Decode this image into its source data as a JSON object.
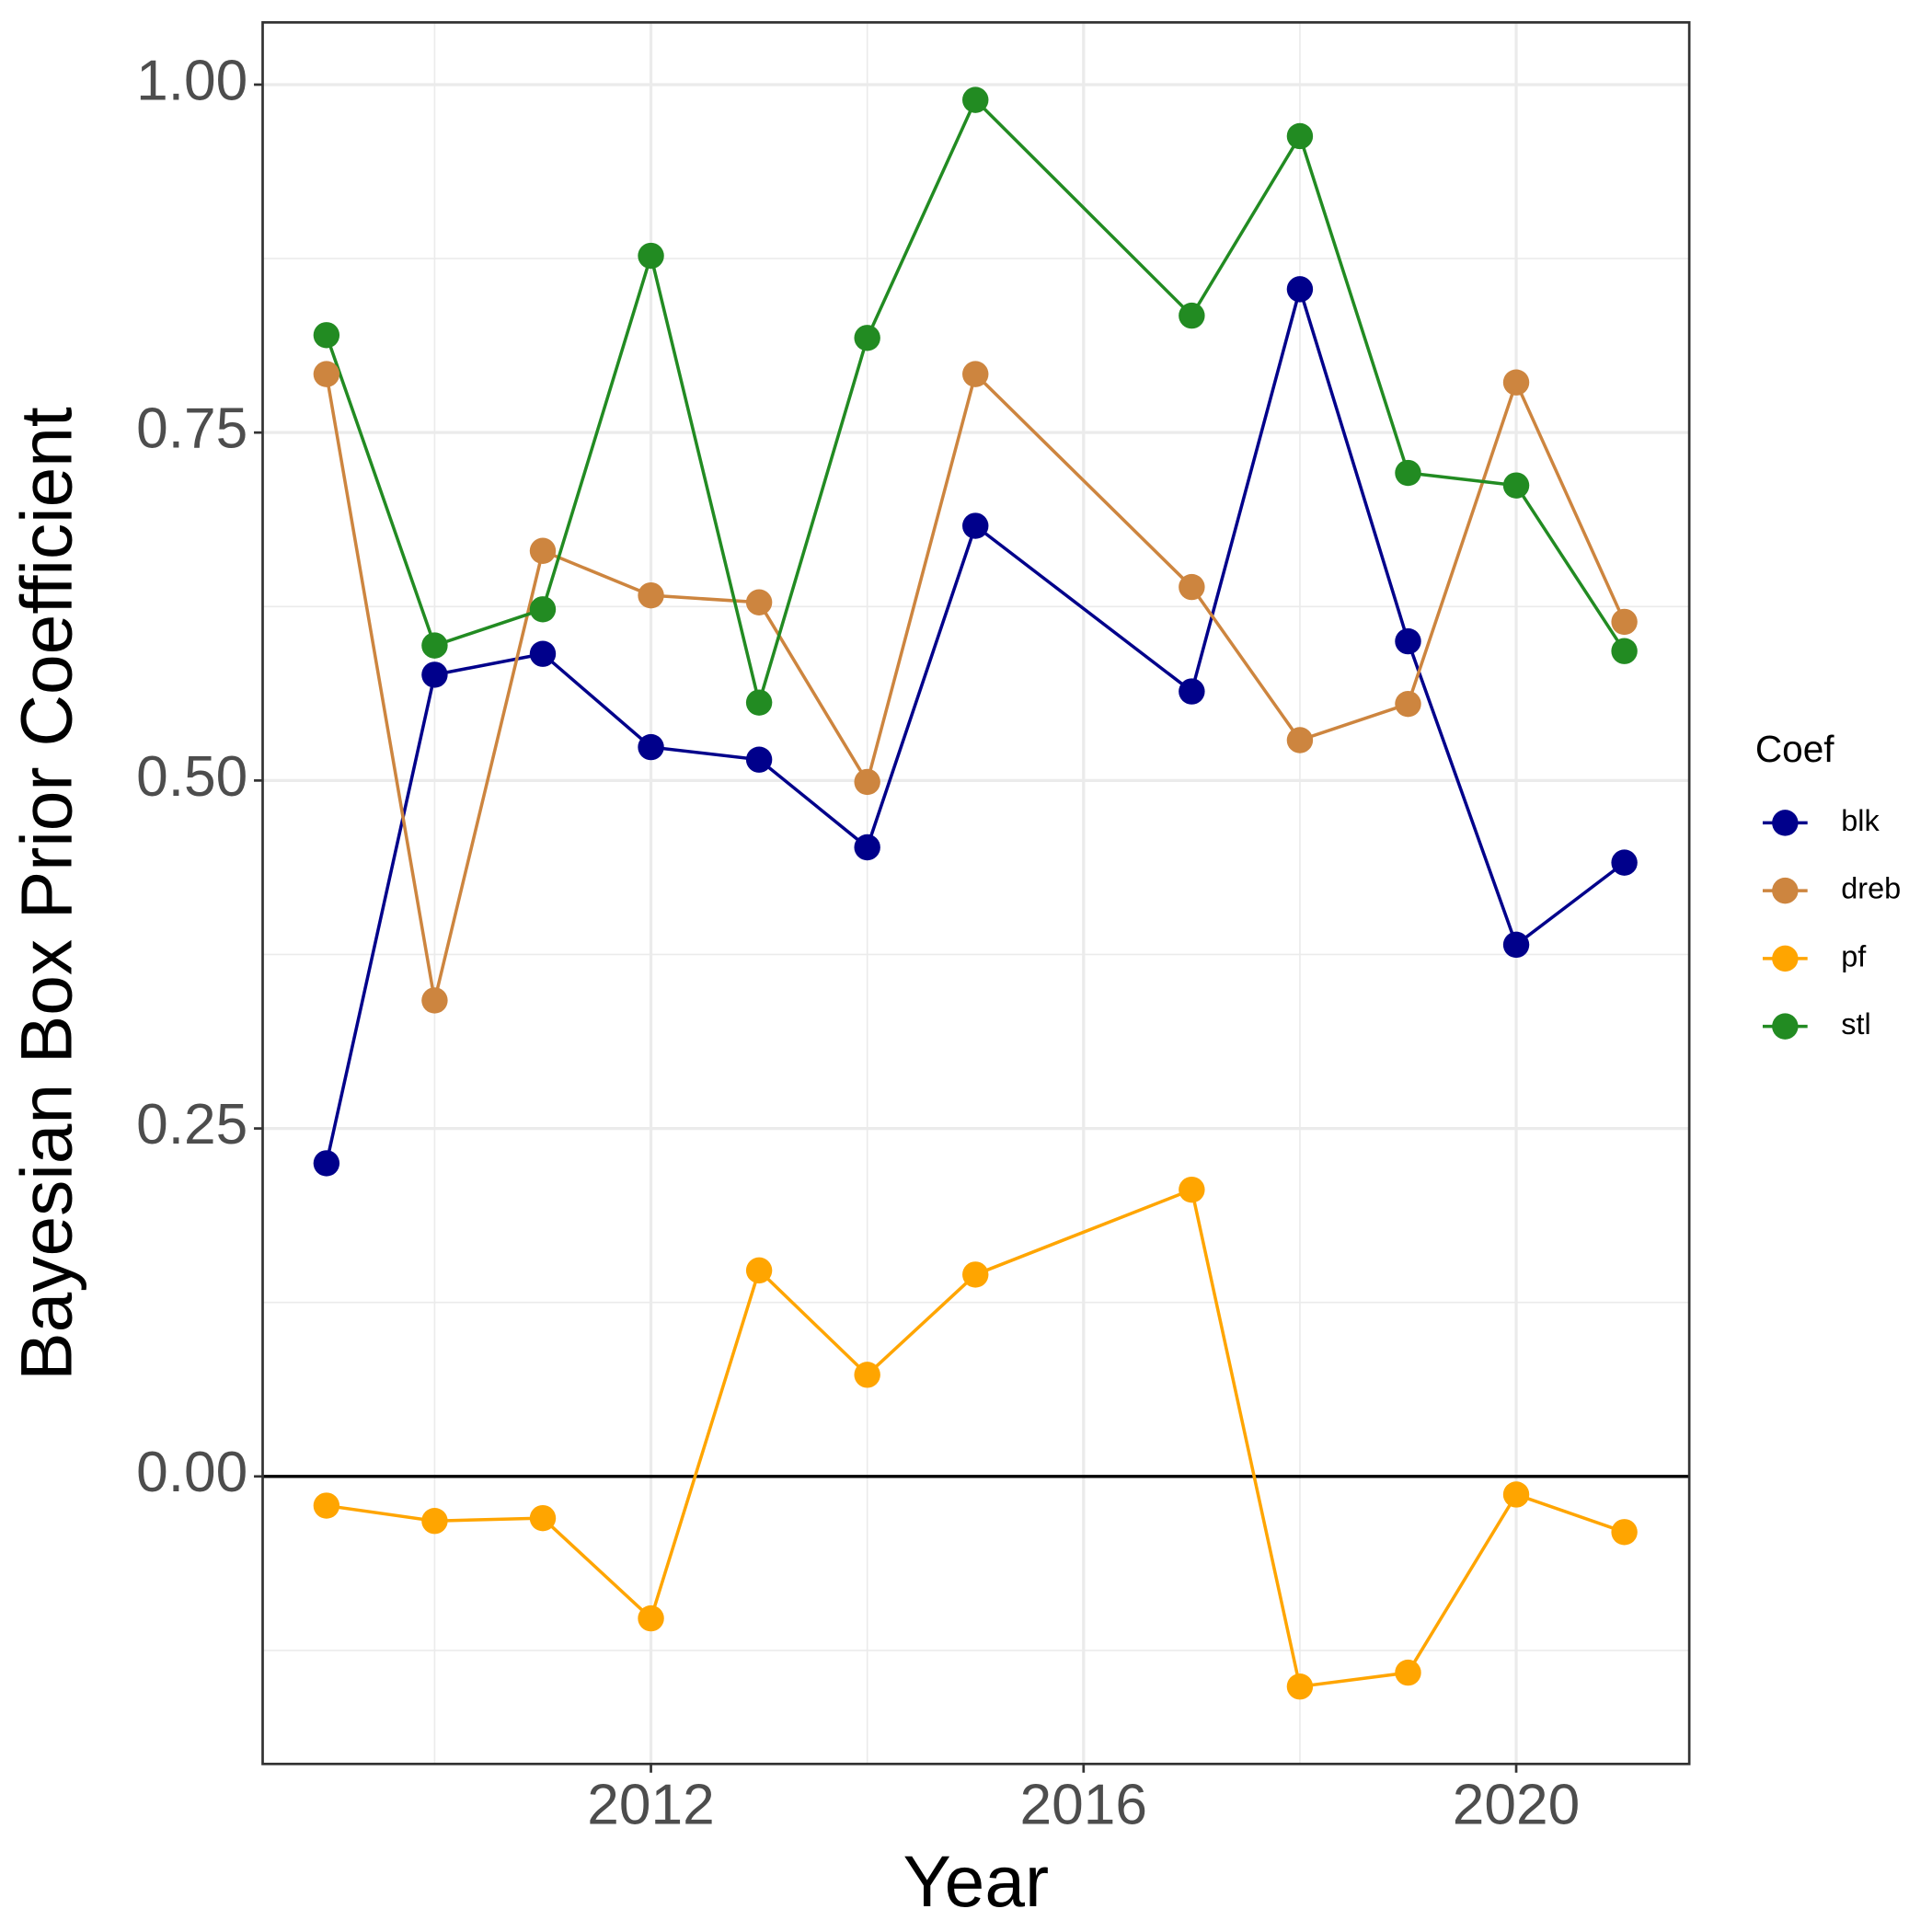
{
  "chart_data": {
    "type": "line",
    "x_label": "Year",
    "y_label": "Bayesian Box Prior Coefficient",
    "x": [
      2009,
      2010,
      2011,
      2012,
      2013,
      2014,
      2015,
      2017,
      2018,
      2019,
      2020,
      2021
    ],
    "series": [
      {
        "name": "blk",
        "color": "#00008b",
        "values": [
          0.225,
          0.576,
          0.591,
          0.524,
          0.515,
          0.452,
          0.683,
          0.564,
          0.853,
          0.6,
          0.382,
          0.441
        ]
      },
      {
        "name": "dreb",
        "color": "#cd853f",
        "values": [
          0.792,
          0.342,
          0.665,
          0.633,
          0.628,
          0.499,
          0.792,
          0.639,
          0.529,
          0.555,
          0.786,
          0.614
        ]
      },
      {
        "name": "pf",
        "color": "#ffa500",
        "values": [
          -0.021,
          -0.032,
          -0.03,
          -0.102,
          0.148,
          0.073,
          0.145,
          0.206,
          -0.151,
          -0.141,
          -0.013,
          -0.04
        ]
      },
      {
        "name": "stl",
        "color": "#228b22",
        "values": [
          0.82,
          0.597,
          0.623,
          0.877,
          0.556,
          0.818,
          0.989,
          0.834,
          0.963,
          0.721,
          0.712,
          0.593
        ]
      }
    ],
    "legend_title": "Coef",
    "legend": "right",
    "xlim": [
      2008.41,
      2021.6
    ],
    "xticks": [
      2012,
      2016,
      2020
    ],
    "ylim": [
      -0.2066,
      1.0447
    ],
    "yticks": [
      {
        "value": 0,
        "label": "0.00"
      },
      {
        "value": 0.25,
        "label": "0.25"
      },
      {
        "value": 0.5,
        "label": "0.50"
      },
      {
        "value": 0.75,
        "label": "0.75"
      },
      {
        "value": 1,
        "label": "1.00"
      }
    ],
    "hline": 0,
    "grid": true
  }
}
